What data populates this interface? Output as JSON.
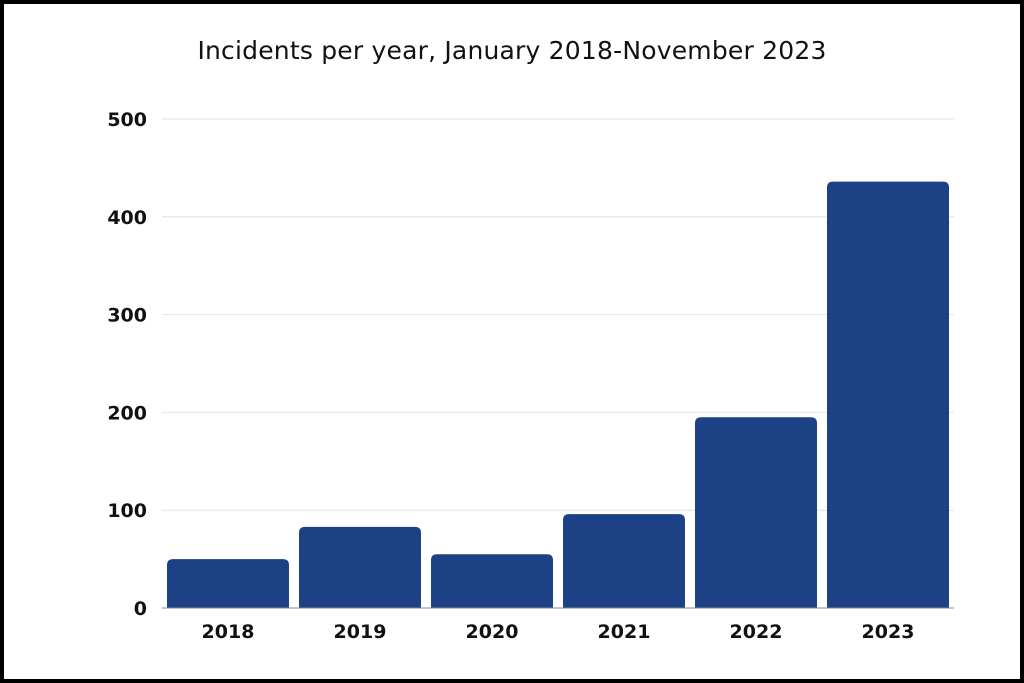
{
  "chart_data": {
    "type": "bar",
    "title": "Incidents per year, January 2018-November 2023",
    "xlabel": "",
    "ylabel": "",
    "categories": [
      "2018",
      "2019",
      "2020",
      "2021",
      "2022",
      "2023"
    ],
    "values": [
      50,
      83,
      55,
      96,
      195,
      436
    ],
    "ylim": [
      0,
      500
    ],
    "yticks": [
      0,
      100,
      200,
      300,
      400,
      500
    ],
    "grid": true,
    "legend": "none",
    "colors": {
      "bar": "#1d4185",
      "grid": "#e2e2e2",
      "axis": "#888888"
    }
  }
}
